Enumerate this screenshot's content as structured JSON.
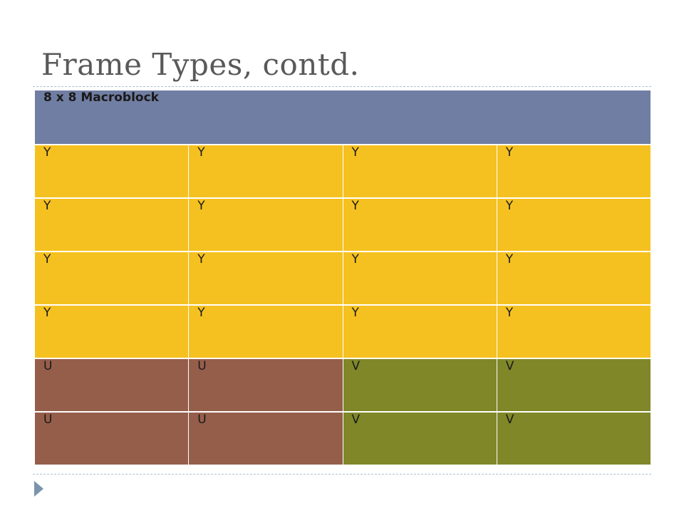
{
  "slide": {
    "title": "Frame Types, contd."
  },
  "table": {
    "header": "8 x 8 Macroblock",
    "rows": [
      [
        "Y",
        "Y",
        "Y",
        "Y"
      ],
      [
        "Y",
        "Y",
        "Y",
        "Y"
      ],
      [
        "Y",
        "Y",
        "Y",
        "Y"
      ],
      [
        "Y",
        "Y",
        "Y",
        "Y"
      ],
      [
        "U",
        "U",
        "V",
        "V"
      ],
      [
        "U",
        "U",
        "V",
        "V"
      ]
    ]
  },
  "colors": {
    "header": "#717ea3",
    "Y": "#f5c120",
    "U": "#955e4b",
    "V": "#7f8728",
    "title": "#595959"
  }
}
